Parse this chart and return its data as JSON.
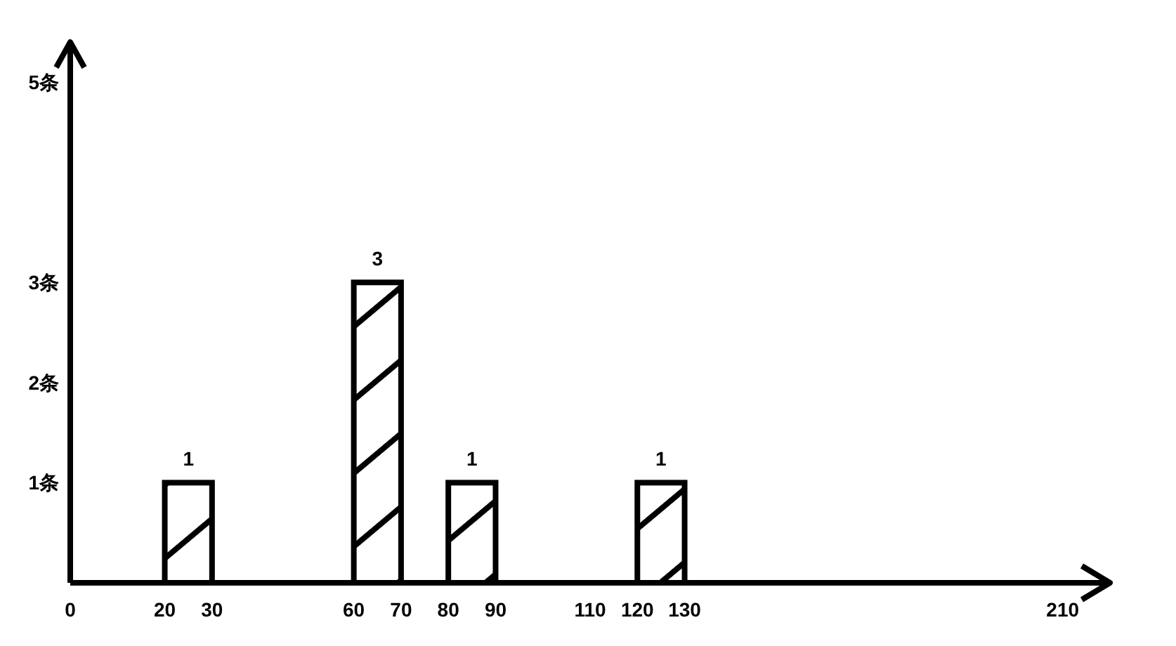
{
  "chart_data": {
    "type": "histogram",
    "bins": [
      20,
      30,
      60,
      70,
      80,
      90,
      120,
      130
    ],
    "values": [
      1,
      0,
      3,
      0,
      1,
      0,
      1
    ],
    "value_labels": [
      "1",
      null,
      "3",
      null,
      "1",
      null,
      "1"
    ],
    "color": "#000000",
    "xlim": [
      0,
      220
    ],
    "xticks": [
      0,
      20,
      30,
      60,
      70,
      80,
      90,
      110,
      120,
      130,
      210
    ],
    "ylim": [
      0,
      5.4
    ],
    "yticks": [
      {
        "value": 1,
        "label": "1条"
      },
      {
        "value": 2,
        "label": "2条"
      },
      {
        "value": 3,
        "label": "3条"
      },
      {
        "value": 5,
        "label": "5条"
      }
    ]
  }
}
